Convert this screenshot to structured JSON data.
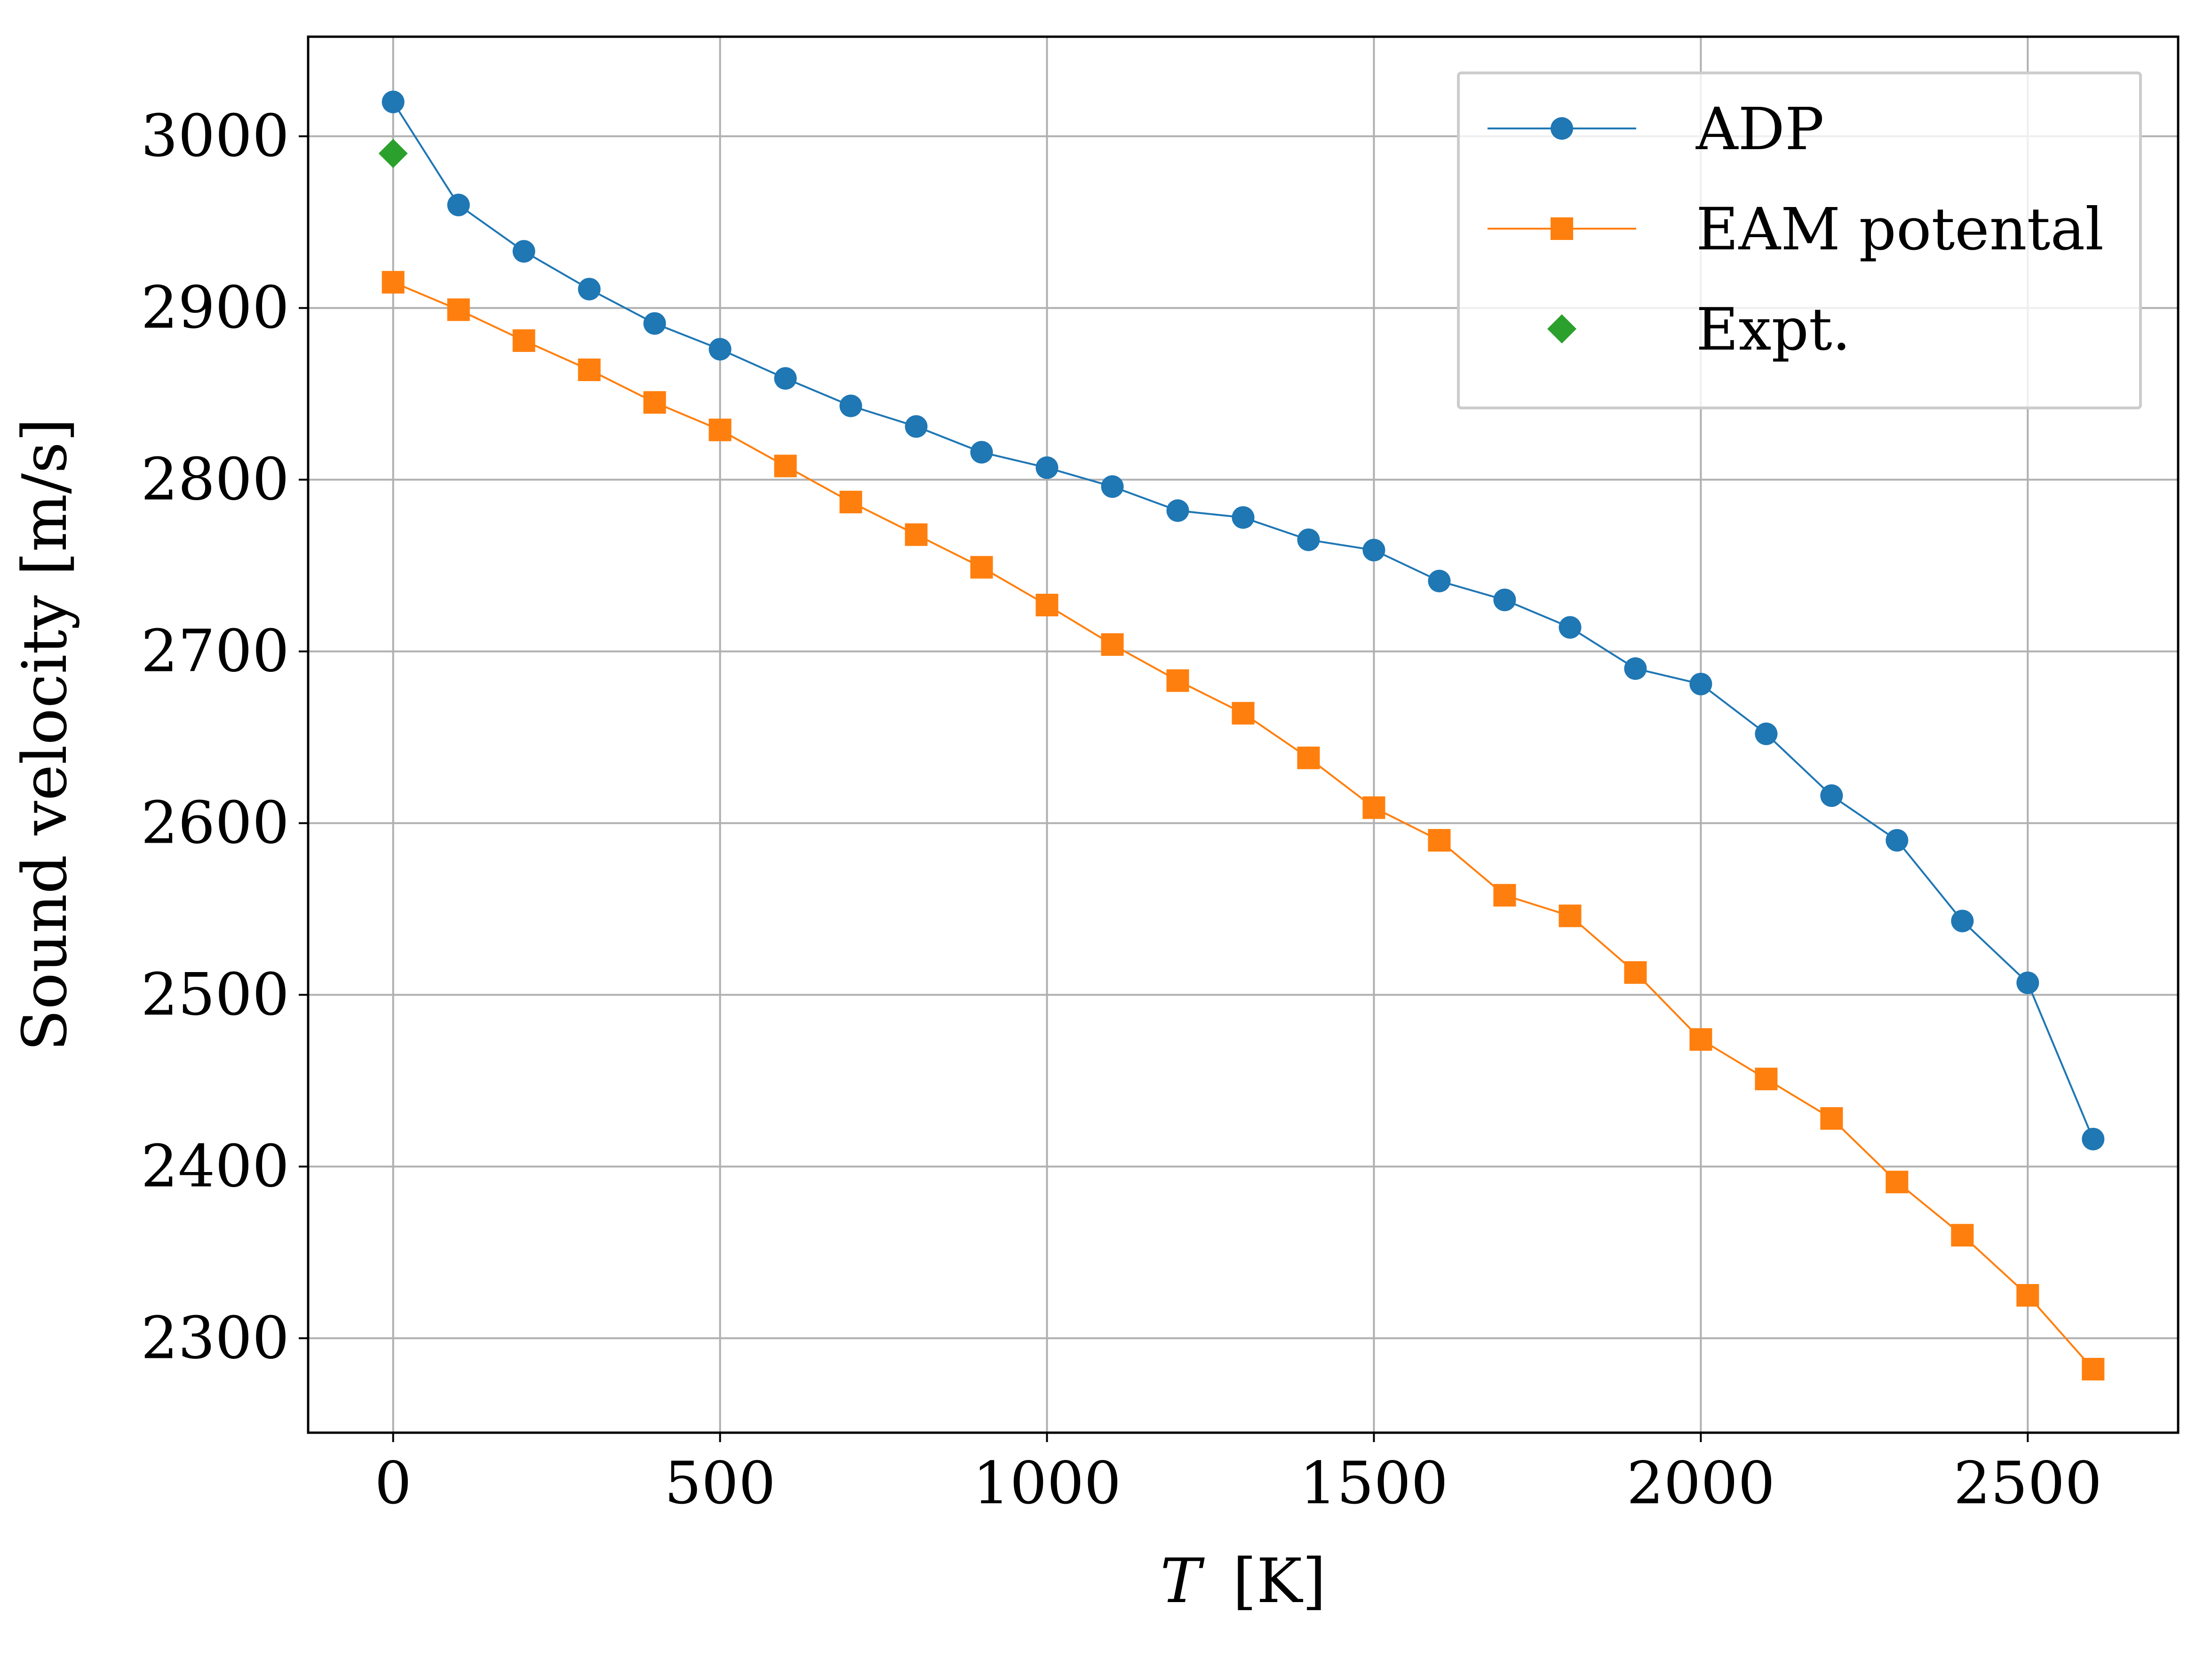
{
  "chart_data": {
    "type": "line",
    "title": "",
    "xlabel": "T",
    "xlabel_unit": "[K]",
    "ylabel": "Sound velocity [m/s]",
    "xlim": [
      -130,
      2730
    ],
    "ylim": [
      2245,
      3058
    ],
    "xticks": [
      0,
      500,
      1000,
      1500,
      2000,
      2500
    ],
    "yticks": [
      2300,
      2400,
      2500,
      2600,
      2700,
      2800,
      2900,
      3000
    ],
    "grid": true,
    "legend_position": "top-right",
    "series": [
      {
        "name": "ADP",
        "marker": "circle",
        "color": "#1f77b4",
        "x": [
          0,
          100,
          200,
          300,
          400,
          500,
          600,
          700,
          800,
          900,
          1000,
          1100,
          1200,
          1300,
          1400,
          1500,
          1600,
          1700,
          1800,
          1900,
          2000,
          2100,
          2200,
          2300,
          2400,
          2500,
          2600
        ],
        "y": [
          3020,
          2960,
          2933,
          2911,
          2891,
          2876,
          2859,
          2843,
          2831,
          2816,
          2807,
          2796,
          2782,
          2778,
          2765,
          2759,
          2741,
          2730,
          2714,
          2690,
          2681,
          2652,
          2616,
          2590,
          2543,
          2507,
          2416
        ]
      },
      {
        "name": "EAM potental",
        "marker": "square",
        "color": "#ff7f0e",
        "x": [
          0,
          100,
          200,
          300,
          400,
          500,
          600,
          700,
          800,
          900,
          1000,
          1100,
          1200,
          1300,
          1400,
          1500,
          1600,
          1700,
          1800,
          1900,
          2000,
          2100,
          2200,
          2300,
          2400,
          2500,
          2600
        ],
        "y": [
          2915,
          2899,
          2881,
          2864,
          2845,
          2829,
          2808,
          2787,
          2768,
          2749,
          2727,
          2704,
          2683,
          2664,
          2638,
          2609,
          2590,
          2558,
          2546,
          2513,
          2474,
          2451,
          2428,
          2391,
          2360,
          2325,
          2282
        ]
      },
      {
        "name": "Expt.",
        "marker": "diamond",
        "color": "#2ca02c",
        "x": [
          0
        ],
        "y": [
          2990
        ]
      }
    ]
  }
}
